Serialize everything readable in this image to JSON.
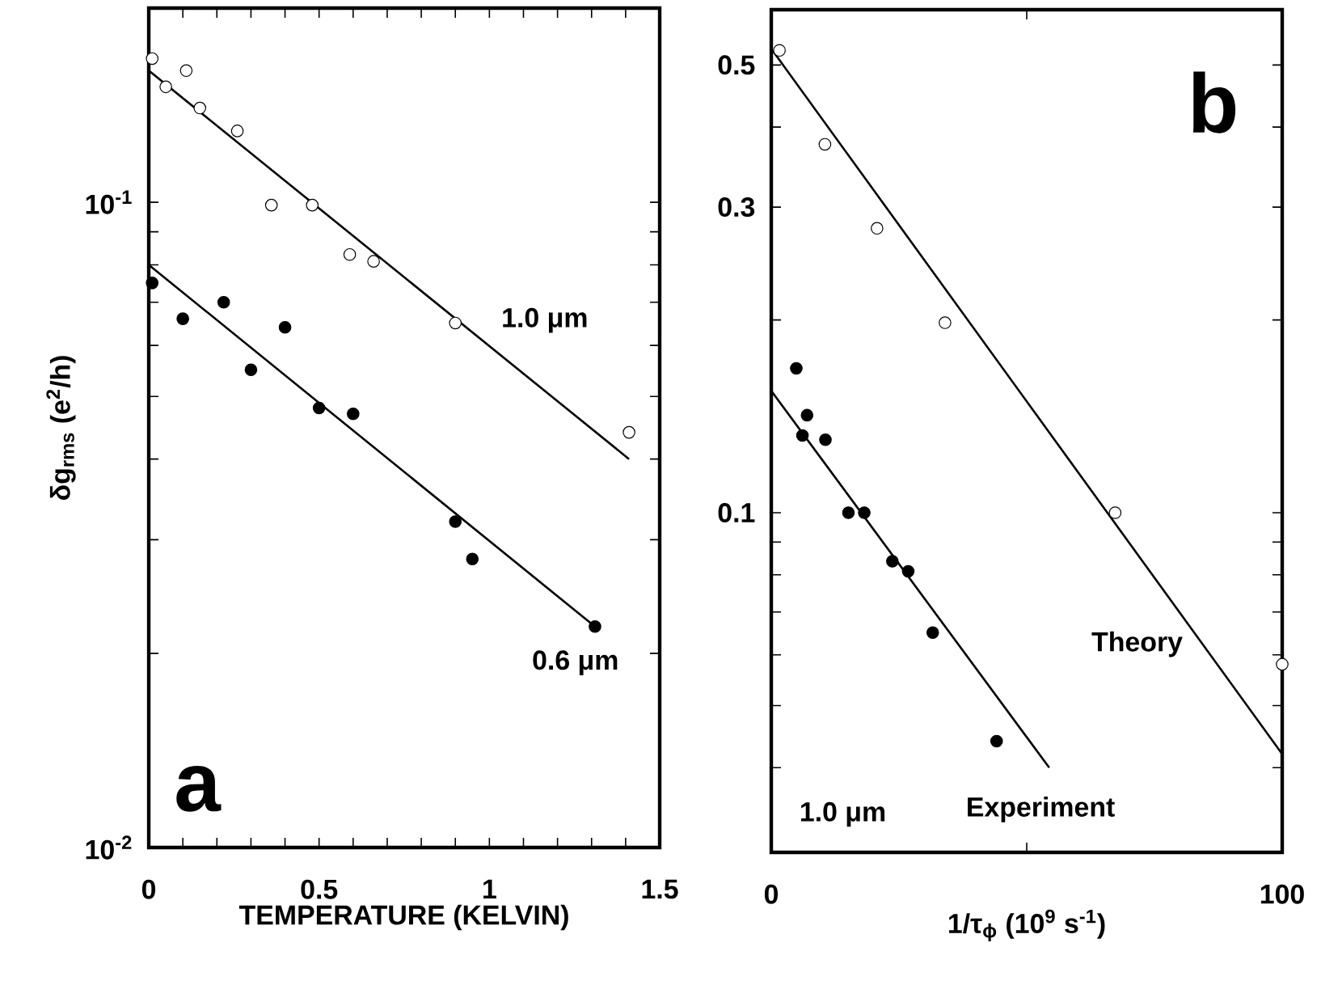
{
  "chart_data": [
    {
      "type": "scatter",
      "xlabel": "TEMPERATURE    (KELVIN)",
      "ylabel": "δg$_{rms}$  (e$^{2}$/h)",
      "log": "y",
      "marker": "circle",
      "xlim": [
        0,
        1.5
      ],
      "ylim": [
        0.01,
        0.2
      ],
      "xticks": [
        0,
        {
          "value": 0.1,
          "label": null
        },
        {
          "value": 0.2,
          "label": null
        },
        {
          "value": 0.3,
          "label": null
        },
        {
          "value": 0.4,
          "label": null
        },
        0.5,
        {
          "value": 0.6,
          "label": null
        },
        {
          "value": 0.7,
          "label": null
        },
        {
          "value": 0.8,
          "label": null
        },
        {
          "value": 0.9,
          "label": null
        },
        1,
        {
          "value": 1.1,
          "label": null
        },
        {
          "value": 1.2,
          "label": null
        },
        {
          "value": 1.3,
          "label": null
        },
        {
          "value": 1.4,
          "label": null
        },
        1.5
      ],
      "yticks": [
        {
          "value": 0.01,
          "label": "10$^{-2}$"
        },
        {
          "value": 0.02,
          "label": null
        },
        {
          "value": 0.03,
          "label": null
        },
        {
          "value": 0.04,
          "label": null
        },
        {
          "value": 0.05,
          "label": null
        },
        {
          "value": 0.06,
          "label": null
        },
        {
          "value": 0.07,
          "label": null
        },
        {
          "value": 0.08,
          "label": null
        },
        {
          "value": 0.09,
          "label": null
        },
        {
          "value": 0.1,
          "label": "10$^{-1}$"
        }
      ],
      "series": [
        {
          "color": "#ffffff",
          "x": [
            0.01,
            0.05,
            0.11,
            0.15,
            0.26,
            0.36,
            0.48,
            0.59,
            0.66,
            0.9,
            1.41
          ],
          "values": [
            0.167,
            0.151,
            0.16,
            0.14,
            0.129,
            0.099,
            0.099,
            0.083,
            0.081,
            0.065,
            0.044
          ]
        },
        {
          "type": "line",
          "marker": "none",
          "color": "#000000",
          "x": [
            0,
            1.41
          ],
          "values": [
            0.16,
            0.04
          ]
        },
        {
          "color": "#000000",
          "x": [
            0.01,
            0.1,
            0.22,
            0.3,
            0.4,
            0.5,
            0.6,
            0.9,
            0.95,
            1.31
          ],
          "values": [
            0.075,
            0.066,
            0.07,
            0.055,
            0.064,
            0.048,
            0.047,
            0.032,
            0.028,
            0.022
          ]
        },
        {
          "type": "line",
          "marker": "none",
          "color": "#000000",
          "x": [
            0,
            1.31
          ],
          "values": [
            0.08,
            0.022
          ]
        }
      ],
      "annotations": [
        "1.0  μm",
        "0.6  μm",
        "a"
      ]
    },
    {
      "type": "scatter",
      "xlabel": "1/τ$_{ϕ}$ (10$^{9}$ s$^{-1}$)",
      "log": "y",
      "marker": "circle",
      "xlim": [
        0,
        100
      ],
      "ylim": [
        0.0295,
        0.61
      ],
      "xticks": [
        0,
        {
          "value": 50,
          "label": null
        },
        100
      ],
      "yticks": [
        {
          "value": 0.04,
          "label": null
        },
        {
          "value": 0.05,
          "label": null
        },
        {
          "value": 0.06,
          "label": null
        },
        {
          "value": 0.07,
          "label": null
        },
        {
          "value": 0.08,
          "label": null
        },
        {
          "value": 0.09,
          "label": null
        },
        0.1,
        {
          "value": 0.2,
          "label": null
        },
        0.3,
        {
          "value": 0.4,
          "label": null
        },
        0.5
      ],
      "series": [
        {
          "color": "#ffffff",
          "x": [
            1.6,
            10.5,
            20.7,
            34,
            67.3,
            100
          ],
          "values": [
            0.527,
            0.376,
            0.278,
            0.198,
            0.1,
            0.058
          ]
        },
        {
          "type": "line",
          "marker": "none",
          "color": "#000000",
          "x": [
            0,
            100
          ],
          "values": [
            0.53,
            0.042
          ]
        },
        {
          "color": "#000000",
          "x": [
            4.9,
            7,
            6.1,
            10.6,
            15.1,
            18.2,
            23.7,
            26.8,
            31.6,
            44.1
          ],
          "values": [
            0.168,
            0.142,
            0.132,
            0.13,
            0.1,
            0.1,
            0.084,
            0.081,
            0.065,
            0.044
          ]
        },
        {
          "type": "line",
          "marker": "none",
          "color": "#000000",
          "x": [
            0,
            54.4
          ],
          "values": [
            0.155,
            0.04
          ]
        }
      ],
      "annotations": [
        "b",
        "Theory",
        "Experiment",
        "1.0  μm"
      ]
    }
  ]
}
